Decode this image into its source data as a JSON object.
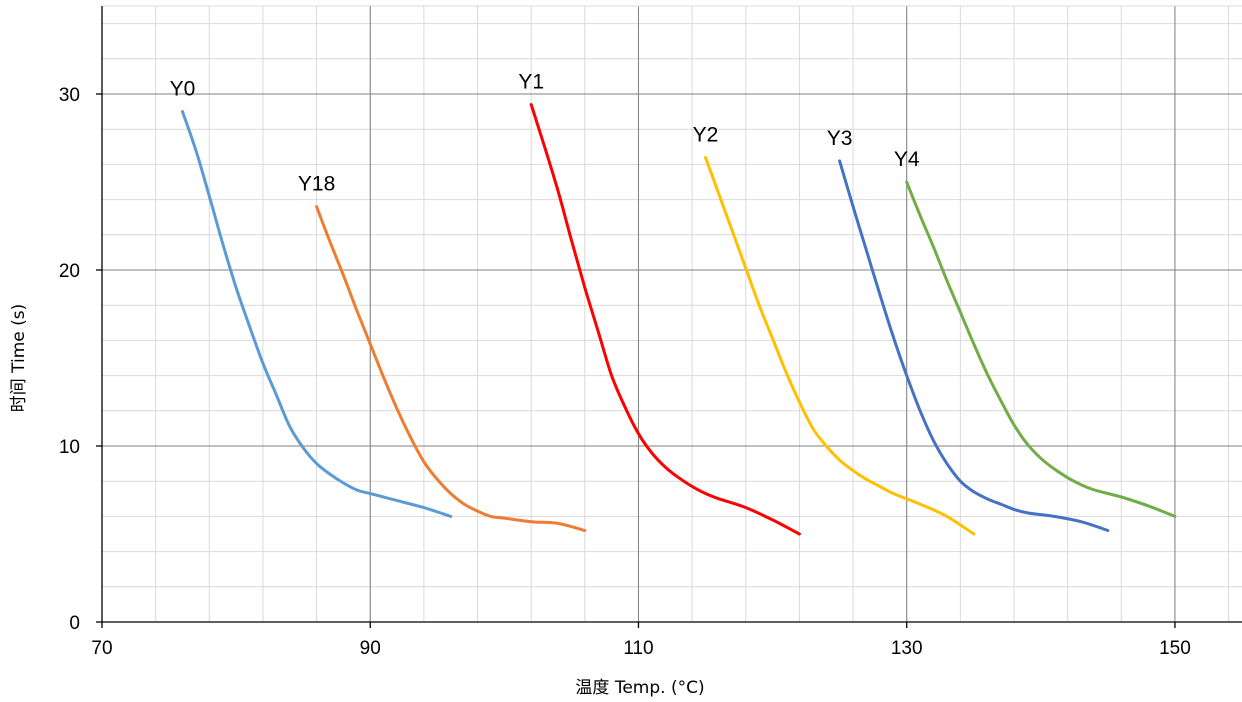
{
  "chart_data": {
    "type": "line",
    "xlabel": "温度 Temp. (°C)",
    "ylabel": "时间 Time (s)",
    "xlim": [
      70,
      155
    ],
    "ylim": [
      0,
      35
    ],
    "x_ticks": [
      70,
      90,
      110,
      130,
      150
    ],
    "y_ticks": [
      0,
      10,
      20,
      30
    ],
    "x_minor_step": 4,
    "y_minor_step": 2,
    "grid": true,
    "legend": "none (series labelled at line start)",
    "series": [
      {
        "name": "Y0",
        "color": "#5b9bd5",
        "x": [
          76,
          77,
          78,
          79,
          80,
          81,
          82,
          83,
          84,
          85,
          86,
          87,
          88,
          89,
          90,
          92,
          94,
          96
        ],
        "y": [
          29.0,
          26.8,
          24.2,
          21.5,
          19.0,
          16.8,
          14.7,
          12.9,
          11.1,
          9.9,
          9.0,
          8.4,
          7.9,
          7.5,
          7.3,
          6.9,
          6.5,
          6.0
        ]
      },
      {
        "name": "Y18",
        "color": "#ed7d31",
        "x": [
          86,
          87,
          88,
          89,
          90,
          91,
          92,
          93,
          94,
          95,
          96,
          97,
          98,
          99,
          100,
          102,
          104,
          106
        ],
        "y": [
          23.6,
          21.6,
          19.7,
          17.7,
          15.8,
          13.9,
          12.1,
          10.5,
          9.1,
          8.1,
          7.3,
          6.7,
          6.3,
          6.0,
          5.9,
          5.7,
          5.6,
          5.2
        ]
      },
      {
        "name": "Y1",
        "color": "#ff0000",
        "x": [
          102,
          103,
          104,
          105,
          106,
          107,
          108,
          109,
          110,
          111,
          112,
          113,
          114,
          115,
          116,
          118,
          120,
          122
        ],
        "y": [
          29.4,
          27.0,
          24.5,
          21.7,
          19.0,
          16.5,
          14.0,
          12.2,
          10.7,
          9.6,
          8.8,
          8.2,
          7.7,
          7.3,
          7.0,
          6.5,
          5.8,
          5.0
        ]
      },
      {
        "name": "Y2",
        "color": "#ffc000",
        "x": [
          115,
          116,
          117,
          118,
          119,
          120,
          121,
          122,
          123,
          124,
          125,
          126,
          127,
          128,
          129,
          131,
          133,
          135
        ],
        "y": [
          26.4,
          24.3,
          22.2,
          20.1,
          18.0,
          16.1,
          14.2,
          12.5,
          11.0,
          10.0,
          9.2,
          8.6,
          8.1,
          7.7,
          7.3,
          6.7,
          6.0,
          5.0
        ]
      },
      {
        "name": "Y3",
        "color": "#4472c4",
        "x": [
          125,
          126,
          127,
          128,
          129,
          130,
          131,
          132,
          133,
          134,
          135,
          136,
          137,
          138,
          139,
          141,
          143,
          145
        ],
        "y": [
          26.2,
          23.6,
          21.1,
          18.6,
          16.2,
          14.0,
          12.0,
          10.3,
          9.0,
          8.0,
          7.4,
          7.0,
          6.7,
          6.4,
          6.2,
          6.0,
          5.7,
          5.2
        ]
      },
      {
        "name": "Y4",
        "color": "#70ad47",
        "x": [
          130,
          131,
          132,
          133,
          134,
          135,
          136,
          137,
          138,
          139,
          140,
          141,
          142,
          143,
          144,
          146,
          148,
          150
        ],
        "y": [
          25.0,
          23.1,
          21.3,
          19.4,
          17.6,
          15.8,
          14.1,
          12.6,
          11.2,
          10.1,
          9.3,
          8.7,
          8.2,
          7.8,
          7.5,
          7.1,
          6.6,
          6.0
        ]
      }
    ]
  }
}
